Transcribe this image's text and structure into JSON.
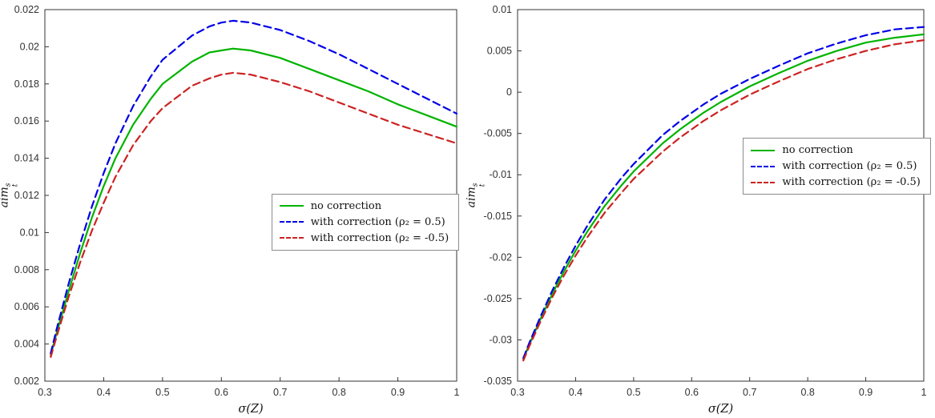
{
  "page": {
    "background": "#ffffff",
    "axis_color": "#333333"
  },
  "chart_data": [
    {
      "type": "line",
      "title": "",
      "xlabel": "σ(Z)",
      "ylabel": "aim_t^s",
      "ylabel_parts": {
        "base": "aim",
        "sub": "t",
        "sup": "s"
      },
      "xlim": [
        0.3,
        1
      ],
      "ylim": [
        0.002,
        0.022
      ],
      "grid": false,
      "xticks": {
        "values": [
          0.3,
          0.4,
          0.5,
          0.6,
          0.7,
          0.8,
          0.9,
          1
        ],
        "labels": [
          "0.3",
          "0.4",
          "0.5",
          "0.6",
          "0.7",
          "0.8",
          "0.9",
          "1"
        ]
      },
      "yticks": {
        "values": [
          0.002,
          0.004,
          0.006,
          0.008,
          0.01,
          0.012,
          0.014,
          0.016,
          0.018,
          0.02,
          0.022
        ],
        "labels": [
          "0.002",
          "0.004",
          "0.006",
          "0.008",
          "0.01",
          "0.012",
          "0.014",
          "0.016",
          "0.018",
          "0.02",
          "0.022"
        ]
      },
      "x": [
        0.31,
        0.32,
        0.34,
        0.36,
        0.38,
        0.4,
        0.42,
        0.45,
        0.48,
        0.5,
        0.55,
        0.58,
        0.6,
        0.62,
        0.65,
        0.7,
        0.75,
        0.8,
        0.85,
        0.9,
        0.95,
        1.0
      ],
      "series": [
        {
          "name": "no correction",
          "color": "#00b300",
          "dash": false,
          "values": [
            0.0034,
            0.0046,
            0.0068,
            0.0089,
            0.0108,
            0.0125,
            0.014,
            0.0158,
            0.0172,
            0.018,
            0.0192,
            0.0197,
            0.0198,
            0.0199,
            0.0198,
            0.0194,
            0.0188,
            0.0182,
            0.0176,
            0.0169,
            0.0163,
            0.0157
          ]
        },
        {
          "name": "with correction (ρ₂ = 0.5)",
          "color": "#0000e6",
          "dash": true,
          "values": [
            0.0035,
            0.0048,
            0.0072,
            0.0094,
            0.0114,
            0.0132,
            0.0148,
            0.0168,
            0.0184,
            0.0193,
            0.0206,
            0.0211,
            0.0213,
            0.0214,
            0.0213,
            0.0209,
            0.0203,
            0.0196,
            0.0188,
            0.018,
            0.0172,
            0.0164
          ]
        },
        {
          "name": "with correction (ρ₂ = -0.5)",
          "color": "#cc2222",
          "dash": true,
          "values": [
            0.0033,
            0.0044,
            0.0065,
            0.0084,
            0.0101,
            0.0116,
            0.013,
            0.0147,
            0.016,
            0.0167,
            0.0179,
            0.0183,
            0.0185,
            0.0186,
            0.0185,
            0.0181,
            0.0176,
            0.017,
            0.0164,
            0.0158,
            0.0153,
            0.0148
          ]
        }
      ],
      "legend": {
        "position": "middle-right",
        "fx": 0.55,
        "fy": 0.495
      }
    },
    {
      "type": "line",
      "title": "",
      "xlabel": "σ(Z)",
      "ylabel": "aim_t^s",
      "ylabel_parts": {
        "base": "aim",
        "sub": "t",
        "sup": "s"
      },
      "xlim": [
        0.3,
        1
      ],
      "ylim": [
        -0.035,
        0.01
      ],
      "grid": false,
      "xticks": {
        "values": [
          0.3,
          0.4,
          0.5,
          0.6,
          0.7,
          0.8,
          0.9,
          1
        ],
        "labels": [
          "0.3",
          "0.4",
          "0.5",
          "0.6",
          "0.7",
          "0.8",
          "0.9",
          "1"
        ]
      },
      "yticks": {
        "values": [
          -0.035,
          -0.03,
          -0.025,
          -0.02,
          -0.015,
          -0.01,
          -0.005,
          0,
          0.005,
          0.01
        ],
        "labels": [
          "-0.035",
          "-0.03",
          "-0.025",
          "-0.02",
          "-0.015",
          "-0.01",
          "-0.005",
          "0",
          "0.005",
          "0.01"
        ]
      },
      "x": [
        0.31,
        0.32,
        0.34,
        0.36,
        0.38,
        0.4,
        0.42,
        0.45,
        0.48,
        0.5,
        0.55,
        0.58,
        0.6,
        0.62,
        0.65,
        0.7,
        0.75,
        0.8,
        0.85,
        0.9,
        0.95,
        1.0
      ],
      "series": [
        {
          "name": "no correction",
          "color": "#00b300",
          "dash": false,
          "values": [
            -0.0323,
            -0.0306,
            -0.0274,
            -0.0244,
            -0.0217,
            -0.0192,
            -0.0169,
            -0.0138,
            -0.0112,
            -0.0096,
            -0.0062,
            -0.0045,
            -0.0035,
            -0.0025,
            -0.0012,
            0.0007,
            0.0023,
            0.0038,
            0.005,
            0.006,
            0.0066,
            0.007
          ]
        },
        {
          "name": "with correction (ρ₂ = 0.5)",
          "color": "#0000e6",
          "dash": true,
          "values": [
            -0.0322,
            -0.0304,
            -0.0271,
            -0.024,
            -0.0212,
            -0.0186,
            -0.0162,
            -0.013,
            -0.0103,
            -0.0087,
            -0.0052,
            -0.0035,
            -0.0025,
            -0.0015,
            -0.0002,
            0.0016,
            0.0032,
            0.0047,
            0.0059,
            0.0069,
            0.0076,
            0.0079
          ]
        },
        {
          "name": "with correction (ρ₂ = -0.5)",
          "color": "#cc2222",
          "dash": true,
          "values": [
            -0.0325,
            -0.0308,
            -0.0277,
            -0.0248,
            -0.0222,
            -0.0198,
            -0.0176,
            -0.0146,
            -0.0121,
            -0.0105,
            -0.0072,
            -0.0055,
            -0.0045,
            -0.0035,
            -0.0022,
            -0.0003,
            0.0013,
            0.0028,
            0.004,
            0.005,
            0.0058,
            0.0063
          ]
        }
      ],
      "legend": {
        "position": "middle-right",
        "fx": 0.555,
        "fy": 0.345
      }
    }
  ]
}
